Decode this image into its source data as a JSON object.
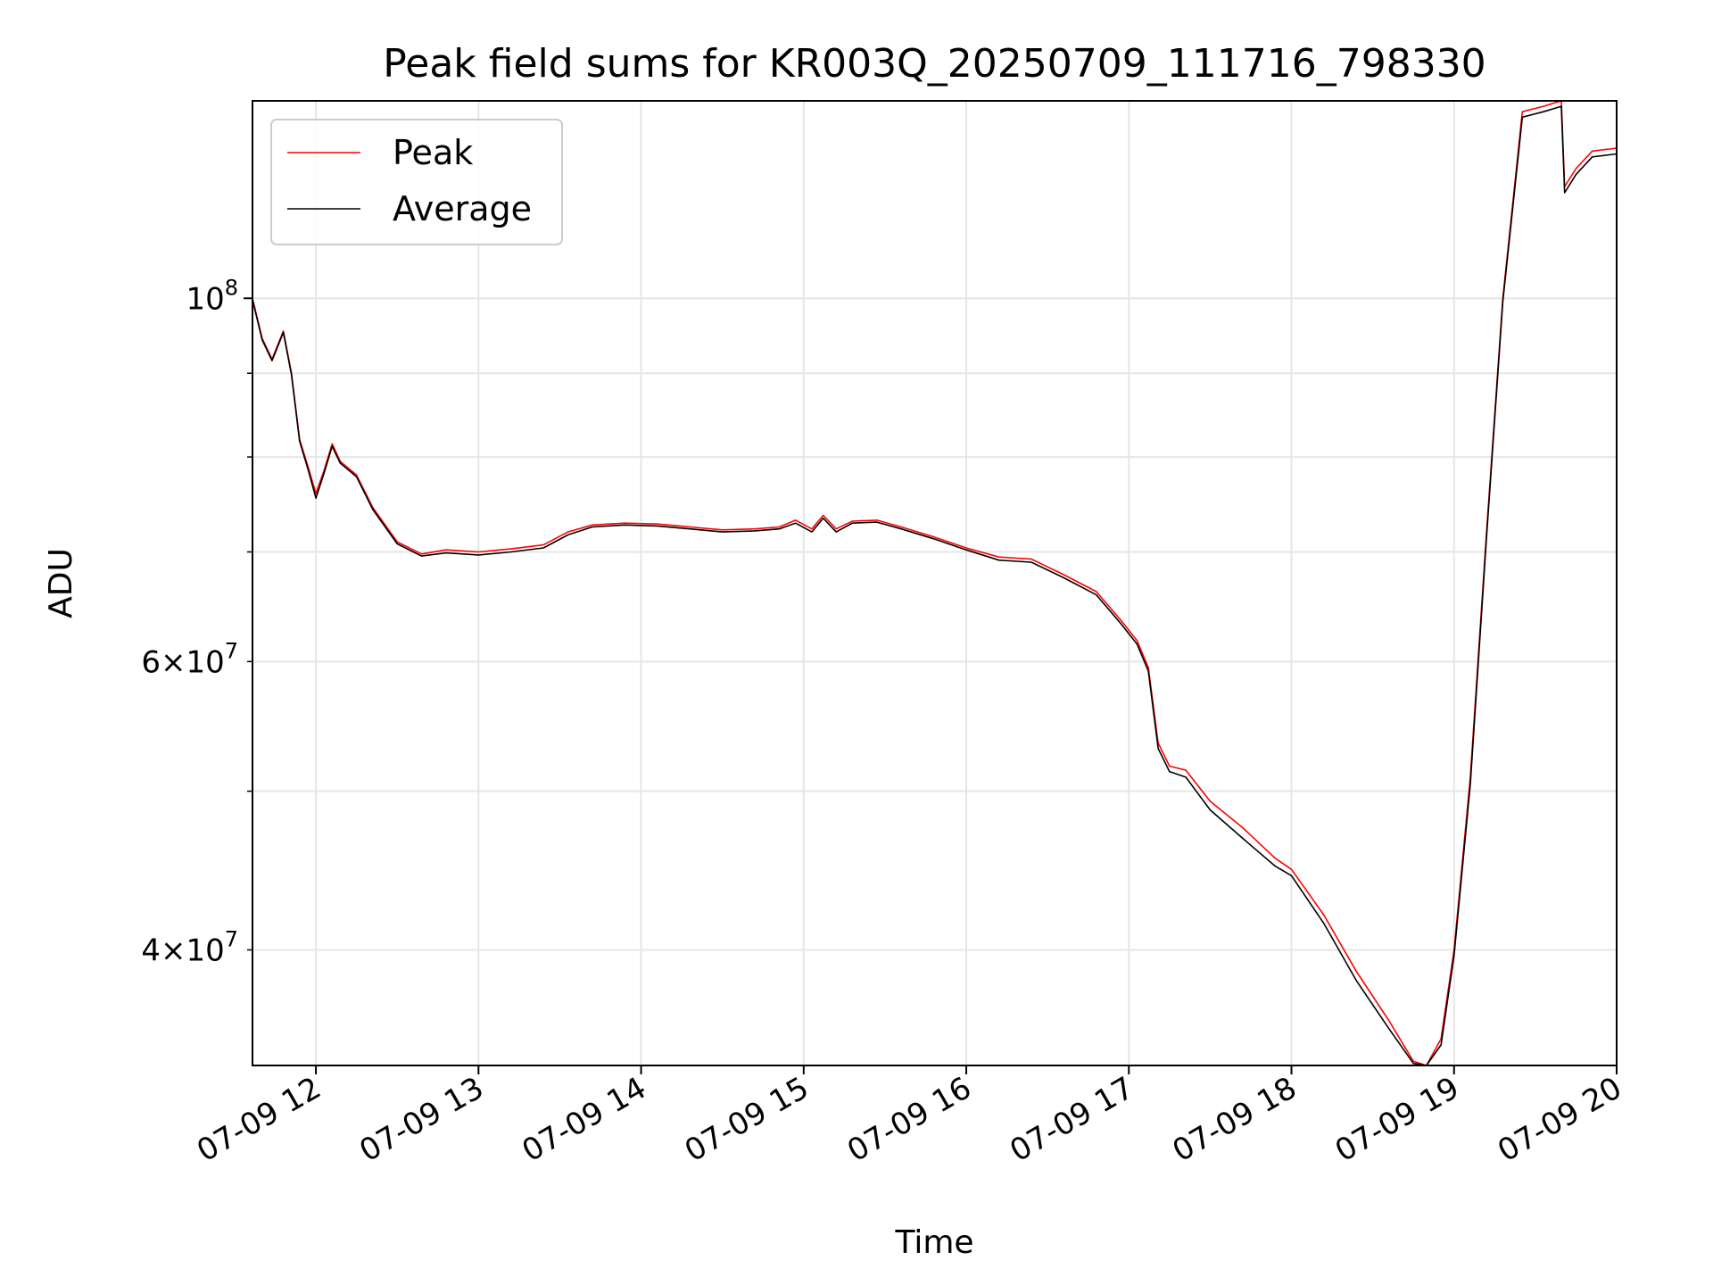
{
  "chart_data": {
    "type": "line",
    "title": "Peak field sums for KR003Q_20250709_111716_798330",
    "xlabel": "Time",
    "ylabel": "ADU",
    "x_start": "2025-07-09 11:37",
    "x_end": "2025-07-09 20:00",
    "xlim_hours": [
      11.61,
      20.0
    ],
    "x_ticks": [
      {
        "label": "07-09 12",
        "value": 12
      },
      {
        "label": "07-09 13",
        "value": 13
      },
      {
        "label": "07-09 14",
        "value": 14
      },
      {
        "label": "07-09 15",
        "value": 15
      },
      {
        "label": "07-09 16",
        "value": 16
      },
      {
        "label": "07-09 17",
        "value": 17
      },
      {
        "label": "07-09 18",
        "value": 18
      },
      {
        "label": "07-09 19",
        "value": 19
      },
      {
        "label": "07-09 20",
        "value": 20
      }
    ],
    "y_scale": "log",
    "ylim": [
      34000000,
      132000000
    ],
    "y_ticks_major": [
      {
        "label": "10^8",
        "base": "10",
        "exp": "8",
        "value": 100000000
      }
    ],
    "y_ticks_minor": [
      {
        "label": "4×10^7",
        "mant": "4",
        "base": "10",
        "exp": "7",
        "value": 40000000
      },
      {
        "label": "6×10^7",
        "mant": "6",
        "base": "10",
        "exp": "7",
        "value": 60000000
      }
    ],
    "y_minor_grid": [
      40000000,
      50000000,
      60000000,
      70000000,
      80000000,
      90000000
    ],
    "grid": true,
    "legend": {
      "position": "top-left"
    },
    "series": [
      {
        "name": "Peak",
        "color": "#ff0000",
        "points": [
          [
            11.61,
            100000000
          ],
          [
            11.67,
            94500000
          ],
          [
            11.73,
            91800000
          ],
          [
            11.8,
            95500000
          ],
          [
            11.85,
            90000000
          ],
          [
            11.9,
            82000000
          ],
          [
            11.95,
            79000000
          ],
          [
            12.0,
            76000000
          ],
          [
            12.05,
            78500000
          ],
          [
            12.1,
            81500000
          ],
          [
            12.15,
            79500000
          ],
          [
            12.25,
            78000000
          ],
          [
            12.35,
            74500000
          ],
          [
            12.5,
            71000000
          ],
          [
            12.65,
            69800000
          ],
          [
            12.8,
            70200000
          ],
          [
            13.0,
            70000000
          ],
          [
            13.2,
            70300000
          ],
          [
            13.4,
            70700000
          ],
          [
            13.55,
            72000000
          ],
          [
            13.7,
            72700000
          ],
          [
            13.9,
            72900000
          ],
          [
            14.1,
            72800000
          ],
          [
            14.3,
            72500000
          ],
          [
            14.5,
            72200000
          ],
          [
            14.7,
            72300000
          ],
          [
            14.85,
            72500000
          ],
          [
            14.95,
            73200000
          ],
          [
            15.05,
            72300000
          ],
          [
            15.12,
            73700000
          ],
          [
            15.2,
            72300000
          ],
          [
            15.3,
            73100000
          ],
          [
            15.45,
            73200000
          ],
          [
            15.6,
            72500000
          ],
          [
            15.8,
            71500000
          ],
          [
            16.0,
            70400000
          ],
          [
            16.2,
            69500000
          ],
          [
            16.4,
            69300000
          ],
          [
            16.6,
            67800000
          ],
          [
            16.8,
            66200000
          ],
          [
            16.95,
            63600000
          ],
          [
            17.05,
            61800000
          ],
          [
            17.12,
            59500000
          ],
          [
            17.18,
            53500000
          ],
          [
            17.25,
            51800000
          ],
          [
            17.35,
            51500000
          ],
          [
            17.5,
            49300000
          ],
          [
            17.7,
            47500000
          ],
          [
            17.9,
            45500000
          ],
          [
            18.0,
            44800000
          ],
          [
            18.2,
            42000000
          ],
          [
            18.4,
            38800000
          ],
          [
            18.6,
            36200000
          ],
          [
            18.75,
            34200000
          ],
          [
            18.83,
            34000000
          ],
          [
            18.92,
            35300000
          ],
          [
            19.0,
            40000000
          ],
          [
            19.1,
            51000000
          ],
          [
            19.2,
            72000000
          ],
          [
            19.3,
            100000000
          ],
          [
            19.42,
            130000000
          ],
          [
            19.55,
            131000000
          ],
          [
            19.66,
            132000000
          ],
          [
            19.68,
            117000000
          ],
          [
            19.75,
            120000000
          ],
          [
            19.85,
            123000000
          ],
          [
            20.0,
            123500000
          ]
        ]
      },
      {
        "name": "Average",
        "color": "#000000",
        "points": [
          [
            11.61,
            99800000
          ],
          [
            11.67,
            94300000
          ],
          [
            11.73,
            91600000
          ],
          [
            11.8,
            95300000
          ],
          [
            11.85,
            89800000
          ],
          [
            11.9,
            81800000
          ],
          [
            11.95,
            78700000
          ],
          [
            12.0,
            75500000
          ],
          [
            12.05,
            78200000
          ],
          [
            12.1,
            81200000
          ],
          [
            12.15,
            79300000
          ],
          [
            12.25,
            77800000
          ],
          [
            12.35,
            74300000
          ],
          [
            12.5,
            70800000
          ],
          [
            12.65,
            69600000
          ],
          [
            12.8,
            69900000
          ],
          [
            13.0,
            69700000
          ],
          [
            13.2,
            70000000
          ],
          [
            13.4,
            70400000
          ],
          [
            13.55,
            71700000
          ],
          [
            13.7,
            72500000
          ],
          [
            13.9,
            72700000
          ],
          [
            14.1,
            72600000
          ],
          [
            14.3,
            72300000
          ],
          [
            14.5,
            72000000
          ],
          [
            14.7,
            72100000
          ],
          [
            14.85,
            72300000
          ],
          [
            14.95,
            72900000
          ],
          [
            15.05,
            72000000
          ],
          [
            15.12,
            73400000
          ],
          [
            15.2,
            72000000
          ],
          [
            15.3,
            72900000
          ],
          [
            15.45,
            73000000
          ],
          [
            15.6,
            72300000
          ],
          [
            15.8,
            71300000
          ],
          [
            16.0,
            70200000
          ],
          [
            16.2,
            69200000
          ],
          [
            16.4,
            69000000
          ],
          [
            16.6,
            67500000
          ],
          [
            16.8,
            65900000
          ],
          [
            16.95,
            63300000
          ],
          [
            17.05,
            61500000
          ],
          [
            17.12,
            59200000
          ],
          [
            17.18,
            53100000
          ],
          [
            17.25,
            51400000
          ],
          [
            17.35,
            51000000
          ],
          [
            17.5,
            48700000
          ],
          [
            17.7,
            46800000
          ],
          [
            17.9,
            45000000
          ],
          [
            18.0,
            44400000
          ],
          [
            18.2,
            41500000
          ],
          [
            18.4,
            38300000
          ],
          [
            18.6,
            35800000
          ],
          [
            18.75,
            34100000
          ],
          [
            18.83,
            34000000
          ],
          [
            18.92,
            35000000
          ],
          [
            19.0,
            39700000
          ],
          [
            19.1,
            50500000
          ],
          [
            19.2,
            71500000
          ],
          [
            19.3,
            99500000
          ],
          [
            19.42,
            129000000
          ],
          [
            19.55,
            130000000
          ],
          [
            19.66,
            131000000
          ],
          [
            19.68,
            116000000
          ],
          [
            19.75,
            119000000
          ],
          [
            19.85,
            122000000
          ],
          [
            20.0,
            122500000
          ]
        ]
      }
    ]
  }
}
